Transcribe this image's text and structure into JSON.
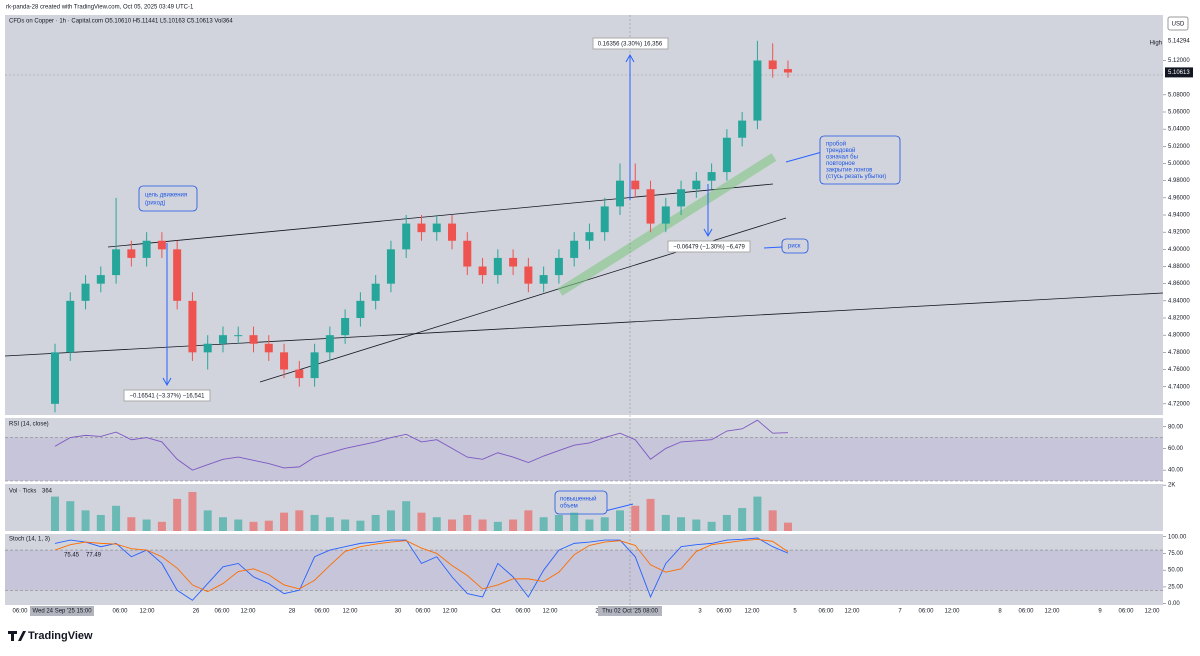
{
  "header": {
    "credit": "rk-panda-28 created with TradingView.com, Oct 05, 2025 03:49 UTC-1",
    "symbol_line": "CFDs on Copper · 1h · Capital.com  O5.10610 H5.11441 L5.10163 C5.10613 Vol364",
    "currency": "USD",
    "high_tag": "High",
    "logo": "TradingView"
  },
  "time_axis": [
    "06:00",
    "Wed 24 Sep '25 15:00",
    "06:00",
    "12:00",
    "26",
    "06:00",
    "12:00",
    "28",
    "06:00",
    "12:00",
    "30",
    "06:00",
    "12:00",
    "Oct",
    "06:00",
    "12:00",
    "2",
    "Thu 02 Oct '25 08:00",
    "3",
    "06:00",
    "12:00",
    "5",
    "06:00",
    "12:00",
    "7",
    "06:00",
    "12:00",
    "8",
    "06:00",
    "12:00",
    "9",
    "06:00",
    "12:00"
  ],
  "annotations": {
    "up_measure": "0.16356 (3.30%) 16,356",
    "down_measure": "−0.16541 (−3.37%) −16,541",
    "risk_measure": "−0.06479 (−1.30%) −6,479",
    "target": [
      "цель движения",
      "(риход)"
    ],
    "breakout": [
      "пробой",
      "трендовой",
      "означал бы",
      "повторное",
      "закрытие лонгов",
      "(стусь резать убытки)"
    ],
    "risk": "риск",
    "volume_note": [
      "повышенный",
      "объем"
    ]
  },
  "chart_data": [
    {
      "type": "candlestick",
      "up_color": "#26a69a",
      "down_color": "#ef5350",
      "open": [
        4.72,
        4.78,
        4.84,
        4.86,
        4.87,
        4.9,
        4.89,
        4.91,
        4.9,
        4.84,
        4.78,
        4.79,
        4.8,
        4.8,
        4.79,
        4.78,
        4.76,
        4.75,
        4.78,
        4.8,
        4.82,
        4.84,
        4.86,
        4.9,
        4.93,
        4.92,
        4.93,
        4.91,
        4.88,
        4.87,
        4.89,
        4.88,
        4.86,
        4.87,
        4.89,
        4.91,
        4.92,
        4.95,
        4.98,
        4.97,
        4.93,
        4.95,
        4.97,
        4.98,
        4.99,
        5.03,
        5.05,
        5.12,
        5.11
      ],
      "high": [
        4.79,
        4.85,
        4.87,
        4.88,
        4.96,
        4.91,
        4.92,
        4.92,
        4.91,
        4.85,
        4.8,
        4.81,
        4.81,
        4.81,
        4.8,
        4.79,
        4.77,
        4.79,
        4.81,
        4.83,
        4.85,
        4.87,
        4.91,
        4.94,
        4.94,
        4.94,
        4.94,
        4.92,
        4.89,
        4.9,
        4.9,
        4.89,
        4.88,
        4.9,
        4.92,
        4.93,
        4.96,
        5.0,
        5.0,
        4.98,
        4.96,
        4.98,
        4.99,
        5.0,
        5.04,
        5.06,
        5.143,
        5.14,
        5.12
      ],
      "low": [
        4.71,
        4.77,
        4.83,
        4.85,
        4.86,
        4.88,
        4.88,
        4.89,
        4.83,
        4.77,
        4.76,
        4.78,
        4.79,
        4.78,
        4.77,
        4.75,
        4.74,
        4.74,
        4.77,
        4.79,
        4.81,
        4.83,
        4.85,
        4.89,
        4.91,
        4.91,
        4.9,
        4.87,
        4.86,
        4.86,
        4.87,
        4.85,
        4.85,
        4.86,
        4.88,
        4.9,
        4.91,
        4.94,
        4.96,
        4.92,
        4.92,
        4.94,
        4.96,
        4.97,
        4.98,
        5.02,
        5.04,
        5.1,
        5.1
      ],
      "close": [
        4.78,
        4.84,
        4.86,
        4.87,
        4.9,
        4.89,
        4.91,
        4.9,
        4.84,
        4.78,
        4.79,
        4.8,
        4.8,
        4.79,
        4.78,
        4.76,
        4.75,
        4.78,
        4.8,
        4.82,
        4.84,
        4.86,
        4.9,
        4.93,
        4.92,
        4.93,
        4.91,
        4.88,
        4.87,
        4.89,
        4.88,
        4.86,
        4.87,
        4.89,
        4.91,
        4.92,
        4.95,
        4.98,
        4.97,
        4.93,
        4.95,
        4.97,
        4.98,
        4.99,
        5.03,
        5.05,
        5.12,
        5.11,
        5.106
      ],
      "ylim": [
        4.707,
        5.173
      ],
      "yticks": [
        {
          "value": 5.12,
          "label": "5.12000"
        },
        {
          "value": 5.08,
          "label": "5.08000"
        },
        {
          "value": 5.06,
          "label": "5.06000"
        },
        {
          "value": 5.04,
          "label": "5.04000"
        },
        {
          "value": 5.02,
          "label": "5.02000"
        },
        {
          "value": 5.0,
          "label": "5.00000"
        },
        {
          "value": 4.98,
          "label": "4.98000"
        },
        {
          "value": 4.96,
          "label": "4.96000"
        },
        {
          "value": 4.94,
          "label": "4.94000"
        },
        {
          "value": 4.92,
          "label": "4.92000"
        },
        {
          "value": 4.9,
          "label": "4.90000"
        },
        {
          "value": 4.88,
          "label": "4.88000"
        },
        {
          "value": 4.86,
          "label": "4.86000"
        },
        {
          "value": 4.84,
          "label": "4.84000"
        },
        {
          "value": 4.82,
          "label": "4.82000"
        },
        {
          "value": 4.8,
          "label": "4.80000"
        },
        {
          "value": 4.78,
          "label": "4.78000"
        },
        {
          "value": 4.76,
          "label": "4.76000"
        },
        {
          "value": 4.74,
          "label": "4.74000"
        },
        {
          "value": 4.72,
          "label": "4.72000"
        }
      ],
      "high_value": 5.14294,
      "last_value": 5.10613
    },
    {
      "type": "line",
      "title": "RSI (14, close)",
      "ylim": [
        30,
        88
      ],
      "yticks": [
        {
          "value": 80,
          "label": "80.00"
        },
        {
          "value": 60,
          "label": "60.00"
        },
        {
          "value": 40,
          "label": "40.00"
        }
      ],
      "band": [
        30,
        70
      ],
      "series": [
        {
          "name": "RSI",
          "color": "#7e57c2",
          "values": [
            62,
            70,
            72,
            71,
            75,
            68,
            70,
            66,
            50,
            40,
            45,
            50,
            52,
            49,
            46,
            42,
            43,
            52,
            56,
            60,
            63,
            66,
            70,
            73,
            66,
            68,
            60,
            52,
            50,
            56,
            52,
            47,
            53,
            58,
            63,
            65,
            70,
            74,
            68,
            50,
            60,
            66,
            67,
            68,
            76,
            78,
            86,
            74,
            74.51
          ]
        }
      ]
    },
    {
      "type": "bar",
      "title": "Vol · Ticks",
      "value_label": "364",
      "ylim": [
        0,
        2050
      ],
      "yticks": [
        {
          "value": 2000,
          "label": "2K"
        }
      ],
      "values": [
        1500,
        1300,
        900,
        700,
        1100,
        600,
        500,
        400,
        1400,
        1700,
        900,
        600,
        500,
        400,
        450,
        800,
        900,
        700,
        600,
        500,
        450,
        700,
        900,
        1300,
        800,
        600,
        500,
        700,
        500,
        400,
        500,
        900,
        600,
        700,
        800,
        500,
        600,
        900,
        1100,
        1400,
        700,
        600,
        500,
        400,
        700,
        1000,
        1500,
        900,
        364
      ]
    },
    {
      "type": "line",
      "title": "Stoch (14, 1, 3)",
      "ylim": [
        -2,
        104
      ],
      "yticks": [
        {
          "value": 100,
          "label": "100.00"
        },
        {
          "value": 75,
          "label": "75.00"
        },
        {
          "value": 50,
          "label": "50.00"
        },
        {
          "value": 25,
          "label": "25.00"
        },
        {
          "value": 0,
          "label": "0.00"
        }
      ],
      "band": [
        20,
        80
      ],
      "series": [
        {
          "name": "%K",
          "color": "#2962ff",
          "value_label": "75.45",
          "values": [
            90,
            95,
            92,
            85,
            90,
            70,
            80,
            60,
            20,
            5,
            30,
            55,
            60,
            40,
            30,
            15,
            20,
            70,
            80,
            85,
            90,
            92,
            95,
            95,
            60,
            70,
            40,
            15,
            10,
            60,
            40,
            10,
            50,
            80,
            90,
            92,
            95,
            95,
            70,
            10,
            60,
            85,
            88,
            90,
            95,
            96,
            98,
            85,
            75.45
          ]
        },
        {
          "name": "%D",
          "color": "#ff6d00",
          "value_label": "77.49",
          "values": [
            80,
            88,
            92,
            90,
            89,
            82,
            80,
            70,
            53,
            28,
            18,
            30,
            48,
            52,
            43,
            28,
            22,
            35,
            57,
            78,
            85,
            89,
            92,
            94,
            83,
            75,
            57,
            42,
            22,
            28,
            37,
            37,
            33,
            47,
            73,
            87,
            92,
            94,
            87,
            58,
            47,
            52,
            78,
            88,
            91,
            94,
            96,
            93,
            77.49
          ]
        }
      ]
    }
  ]
}
